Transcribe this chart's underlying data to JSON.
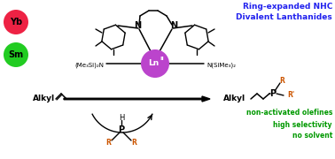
{
  "bg_color": "#ffffff",
  "yb_color": "#ee2244",
  "sm_color": "#22cc22",
  "ln_color": "#bb44cc",
  "blue_color": "#2222ee",
  "green_text_color": "#009900",
  "orange_color": "#cc5500",
  "black": "#000000",
  "title_lines": [
    "Ring-expanded NHC",
    "Divalent Lanthanides"
  ],
  "green_lines": [
    "non-activated olefines",
    "high selectivity",
    "no solvent"
  ],
  "yb_label": "Yb",
  "sm_label": "Sm",
  "amine_left": "(Me₃Si)₂N",
  "amine_right": "N(SiMe₃)₂",
  "r_prime": "R'",
  "r_label": "R",
  "h_label": "H",
  "p_label": "P",
  "alkyl_left": "Alkyl",
  "alkyl_right": "Alkyl",
  "figw": 3.78,
  "figh": 1.8,
  "dpi": 100
}
